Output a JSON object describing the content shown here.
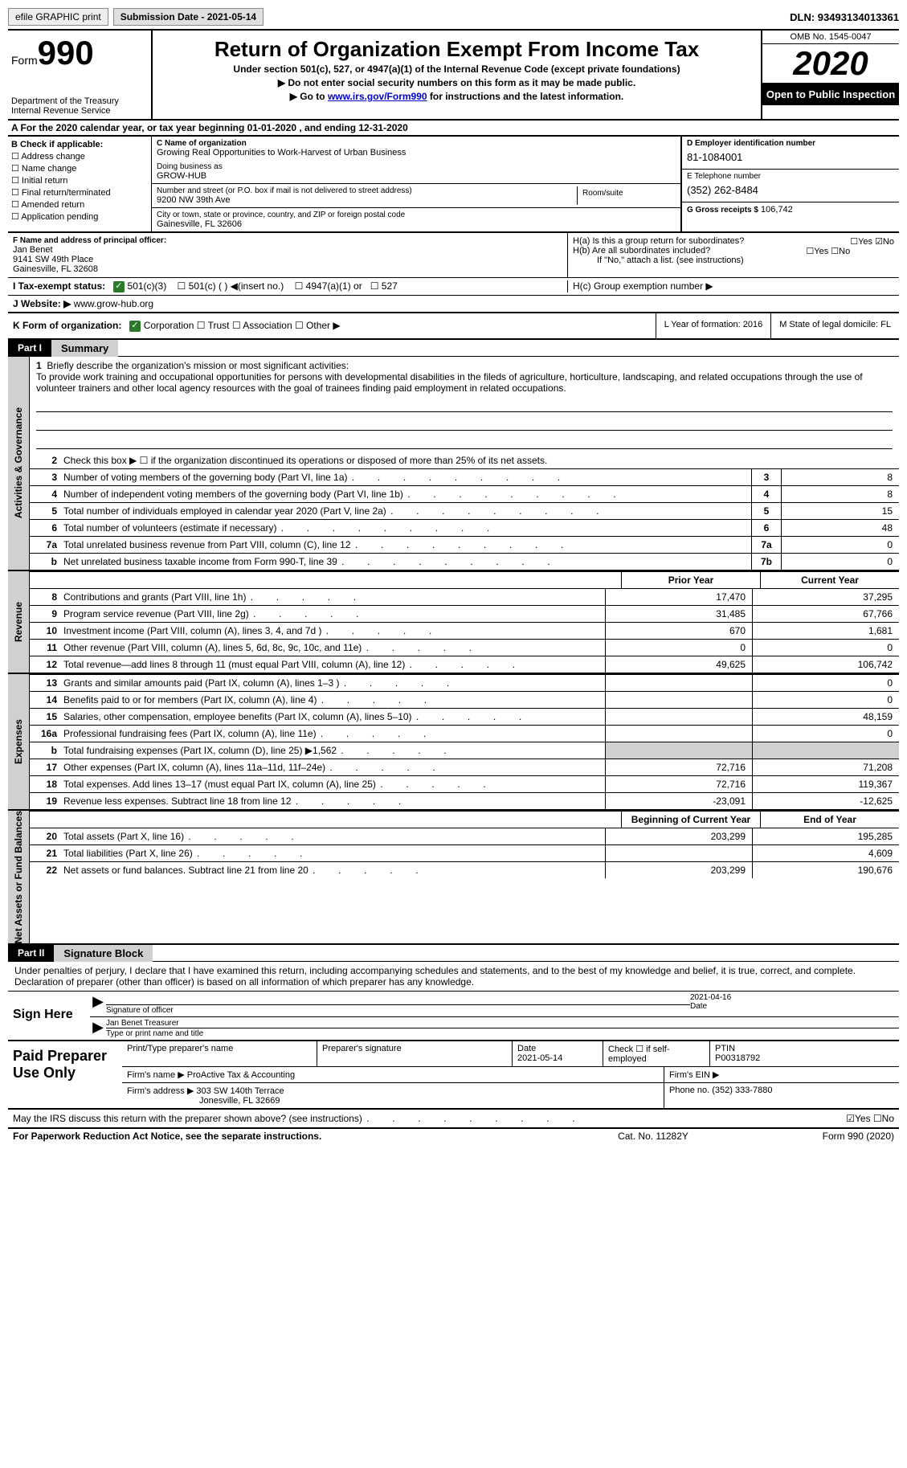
{
  "topbar": {
    "efile": "efile GRAPHIC print",
    "submission": "Submission Date - 2021-05-14",
    "dln": "DLN: 93493134013361"
  },
  "header": {
    "form_label": "Form",
    "form_num": "990",
    "dept": "Department of the Treasury\nInternal Revenue Service",
    "title": "Return of Organization Exempt From Income Tax",
    "sub": "Under section 501(c), 527, or 4947(a)(1) of the Internal Revenue Code (except private foundations)",
    "arrow1": "▶ Do not enter social security numbers on this form as it may be made public.",
    "arrow2_pre": "▶ Go to ",
    "arrow2_link": "www.irs.gov/Form990",
    "arrow2_post": " for instructions and the latest information.",
    "omb": "OMB No. 1545-0047",
    "year": "2020",
    "open": "Open to Public Inspection"
  },
  "period": "A For the 2020 calendar year, or tax year beginning 01-01-2020    , and ending 12-31-2020",
  "boxB": {
    "hdr": "B Check if applicable:",
    "items": [
      "Address change",
      "Name change",
      "Initial return",
      "Final return/terminated",
      "Amended return",
      "Application pending"
    ]
  },
  "boxC": {
    "name_lbl": "C Name of organization",
    "name": "Growing Real Opportunities to Work-Harvest of Urban Business",
    "dba_lbl": "Doing business as",
    "dba": "GROW-HUB",
    "street_lbl": "Number and street (or P.O. box if mail is not delivered to street address)",
    "street": "9200 NW 39th Ave",
    "room_lbl": "Room/suite",
    "city_lbl": "City or town, state or province, country, and ZIP or foreign postal code",
    "city": "Gainesville, FL  32606"
  },
  "boxD": {
    "lbl": "D Employer identification number",
    "val": "81-1084001"
  },
  "boxE": {
    "lbl": "E Telephone number",
    "val": "(352) 262-8484"
  },
  "boxG": {
    "lbl": "G Gross receipts $",
    "val": "106,742"
  },
  "boxF": {
    "lbl": "F Name and address of principal officer:",
    "l1": "Jan Benet",
    "l2": "9141 SW 49th Place",
    "l3": "Gainesville, FL  32608"
  },
  "boxH": {
    "ha": "H(a)  Is this a group return for subordinates?",
    "ha_yn": "☐Yes  ☑No",
    "hb": "H(b)  Are all subordinates included?",
    "hb_yn": "☐Yes  ☐No",
    "hb_note": "If \"No,\" attach a list. (see instructions)",
    "hc": "H(c)  Group exemption number ▶"
  },
  "boxI": {
    "lbl": "I  Tax-exempt status:",
    "o1": "501(c)(3)",
    "o2": "501(c) (  ) ◀(insert no.)",
    "o3": "4947(a)(1) or",
    "o4": "527"
  },
  "boxJ": {
    "lbl": "J  Website: ▶",
    "val": "www.grow-hub.org"
  },
  "boxK": {
    "lbl": "K Form of organization:",
    "opts": "Corporation   ☐ Trust   ☐ Association   ☐ Other ▶"
  },
  "boxL": "L Year of formation: 2016",
  "boxM": "M State of legal domicile: FL",
  "part1": {
    "tag": "Part I",
    "title": "Summary",
    "q1_lbl": "1",
    "q1": "Briefly describe the organization's mission or most significant activities:",
    "mission": "To provide work training and occupational opportunities for persons with developmental disabilities in the fileds of agriculture, horticulture, landscaping, and related occupations through the use of volunteer trainers and other local agency resources with the goal of trainees finding paid employment in related occupations.",
    "q2": "Check this box ▶ ☐  if the organization discontinued its operations or disposed of more than 25% of its net assets.",
    "rows": [
      {
        "n": "3",
        "t": "Number of voting members of the governing body (Part VI, line 1a)",
        "b": "3",
        "v": "8"
      },
      {
        "n": "4",
        "t": "Number of independent voting members of the governing body (Part VI, line 1b)",
        "b": "4",
        "v": "8"
      },
      {
        "n": "5",
        "t": "Total number of individuals employed in calendar year 2020 (Part V, line 2a)",
        "b": "5",
        "v": "15"
      },
      {
        "n": "6",
        "t": "Total number of volunteers (estimate if necessary)",
        "b": "6",
        "v": "48"
      },
      {
        "n": "7a",
        "t": "Total unrelated business revenue from Part VIII, column (C), line 12",
        "b": "7a",
        "v": "0"
      },
      {
        "n": "b",
        "t": "Net unrelated business taxable income from Form 990-T, line 39",
        "b": "7b",
        "v": "0"
      }
    ],
    "side_ag": "Activities & Governance",
    "side_rev": "Revenue",
    "side_exp": "Expenses",
    "side_na": "Net Assets or Fund Balances",
    "col_prior": "Prior Year",
    "col_curr": "Current Year",
    "rev_rows": [
      {
        "n": "8",
        "t": "Contributions and grants (Part VIII, line 1h)",
        "p": "17,470",
        "c": "37,295"
      },
      {
        "n": "9",
        "t": "Program service revenue (Part VIII, line 2g)",
        "p": "31,485",
        "c": "67,766"
      },
      {
        "n": "10",
        "t": "Investment income (Part VIII, column (A), lines 3, 4, and 7d )",
        "p": "670",
        "c": "1,681"
      },
      {
        "n": "11",
        "t": "Other revenue (Part VIII, column (A), lines 5, 6d, 8c, 9c, 10c, and 11e)",
        "p": "0",
        "c": "0"
      },
      {
        "n": "12",
        "t": "Total revenue—add lines 8 through 11 (must equal Part VIII, column (A), line 12)",
        "p": "49,625",
        "c": "106,742"
      }
    ],
    "exp_rows": [
      {
        "n": "13",
        "t": "Grants and similar amounts paid (Part IX, column (A), lines 1–3 )",
        "p": "",
        "c": "0"
      },
      {
        "n": "14",
        "t": "Benefits paid to or for members (Part IX, column (A), line 4)",
        "p": "",
        "c": "0"
      },
      {
        "n": "15",
        "t": "Salaries, other compensation, employee benefits (Part IX, column (A), lines 5–10)",
        "p": "",
        "c": "48,159"
      },
      {
        "n": "16a",
        "t": "Professional fundraising fees (Part IX, column (A), line 11e)",
        "p": "",
        "c": "0"
      },
      {
        "n": "b",
        "t": "Total fundraising expenses (Part IX, column (D), line 25) ▶1,562",
        "p": "SHADE",
        "c": "SHADE"
      },
      {
        "n": "17",
        "t": "Other expenses (Part IX, column (A), lines 11a–11d, 11f–24e)",
        "p": "72,716",
        "c": "71,208"
      },
      {
        "n": "18",
        "t": "Total expenses. Add lines 13–17 (must equal Part IX, column (A), line 25)",
        "p": "72,716",
        "c": "119,367"
      },
      {
        "n": "19",
        "t": "Revenue less expenses. Subtract line 18 from line 12",
        "p": "-23,091",
        "c": "-12,625"
      }
    ],
    "col_boy": "Beginning of Current Year",
    "col_eoy": "End of Year",
    "na_rows": [
      {
        "n": "20",
        "t": "Total assets (Part X, line 16)",
        "p": "203,299",
        "c": "195,285"
      },
      {
        "n": "21",
        "t": "Total liabilities (Part X, line 26)",
        "p": "",
        "c": "4,609"
      },
      {
        "n": "22",
        "t": "Net assets or fund balances. Subtract line 21 from line 20",
        "p": "203,299",
        "c": "190,676"
      }
    ]
  },
  "part2": {
    "tag": "Part II",
    "title": "Signature Block",
    "intro": "Under penalties of perjury, I declare that I have examined this return, including accompanying schedules and statements, and to the best of my knowledge and belief, it is true, correct, and complete. Declaration of preparer (other than officer) is based on all information of which preparer has any knowledge.",
    "sign_here": "Sign Here",
    "sig_date": "2021-04-16",
    "sig_lbl": "Signature of officer",
    "date_lbl": "Date",
    "typed_name": "Jan Benet  Treasurer",
    "typed_lbl": "Type or print name and title",
    "prep_here": "Paid Preparer Use Only",
    "prep_name_lbl": "Print/Type preparer's name",
    "prep_sig_lbl": "Preparer's signature",
    "prep_date_lbl": "Date",
    "prep_date": "2021-05-14",
    "prep_check": "Check ☐ if self-employed",
    "ptin_lbl": "PTIN",
    "ptin": "P00318792",
    "firm_name_lbl": "Firm's name    ▶",
    "firm_name": "ProActive Tax & Accounting",
    "firm_ein_lbl": "Firm's EIN ▶",
    "firm_addr_lbl": "Firm's address ▶",
    "firm_addr1": "303 SW 140th Terrace",
    "firm_addr2": "Jonesville, FL  32669",
    "firm_phone_lbl": "Phone no.",
    "firm_phone": "(352) 333-7880"
  },
  "discuss": {
    "q": "May the IRS discuss this return with the preparer shown above? (see instructions)",
    "yn": "☑Yes  ☐No"
  },
  "footer": {
    "f1": "For Paperwork Reduction Act Notice, see the separate instructions.",
    "f2": "Cat. No. 11282Y",
    "f3": "Form 990 (2020)"
  }
}
